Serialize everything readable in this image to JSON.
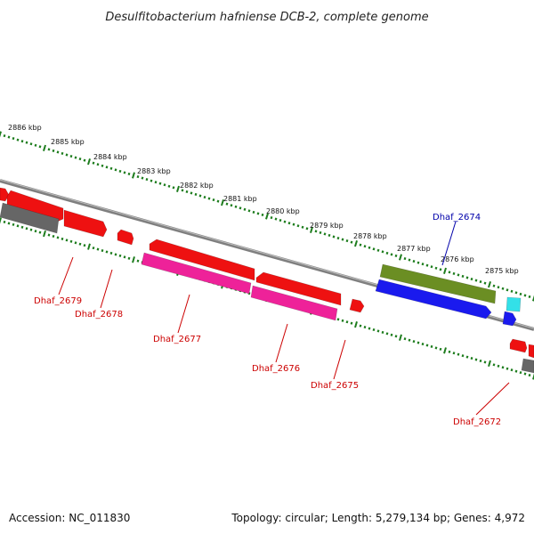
{
  "title": "Desulfitobacterium hafniense DCB-2, complete genome",
  "footer": {
    "accession": "Accession: NC_011830",
    "summary": "Topology: circular; Length: 5,279,134 bp; Genes: 4,972"
  },
  "colors": {
    "backbone": "#8c8c8c",
    "tick": "#1e7d1e",
    "label_red": "#cc0000",
    "label_blue": "#0000aa"
  },
  "ruler": {
    "unit": "kbp",
    "labels": [
      "2886 kbp",
      "2885 kbp",
      "2884 kbp",
      "2883 kbp",
      "2882 kbp",
      "2881 kbp",
      "2880 kbp",
      "2879 kbp",
      "2878 kbp",
      "2877 kbp",
      "2876 kbp",
      "2875 kbp"
    ]
  },
  "genes": [
    {
      "name": "gene-2680",
      "color": "#ee1111",
      "label": ""
    },
    {
      "name": "gene-2681",
      "color": "#ee1111",
      "label": ""
    },
    {
      "name": "gene-dhaf-2679",
      "color": "#ee1111",
      "label": "Dhaf_2679"
    },
    {
      "name": "gene-dhaf-2678",
      "color": "#ee1111",
      "label": "Dhaf_2678"
    },
    {
      "name": "gene-small-a",
      "color": "#ee1111",
      "label": ""
    },
    {
      "name": "gene-dhaf-2677",
      "color": "#ee1111",
      "label": "Dhaf_2677"
    },
    {
      "name": "gene-dhaf-2676",
      "color": "#ee1111",
      "label": "Dhaf_2676"
    },
    {
      "name": "gene-pink-1",
      "color": "#ee2299",
      "label": ""
    },
    {
      "name": "gene-pink-2",
      "color": "#ee2299",
      "label": ""
    },
    {
      "name": "gene-dhaf-2675",
      "color": "#ee1111",
      "label": "Dhaf_2675"
    },
    {
      "name": "gene-dhaf-2674",
      "color": "#6b8e23",
      "label": "Dhaf_2674"
    },
    {
      "name": "gene-blue",
      "color": "#1a1aee",
      "label": ""
    },
    {
      "name": "gene-cyan",
      "color": "#33e0e8",
      "label": ""
    },
    {
      "name": "gene-blue-small",
      "color": "#1a1aee",
      "label": ""
    },
    {
      "name": "gene-dhaf-2672",
      "color": "#ee1111",
      "label": "Dhaf_2672"
    },
    {
      "name": "gene-grey-1",
      "color": "#666666",
      "label": ""
    },
    {
      "name": "gene-grey-2",
      "color": "#666666",
      "label": ""
    }
  ]
}
